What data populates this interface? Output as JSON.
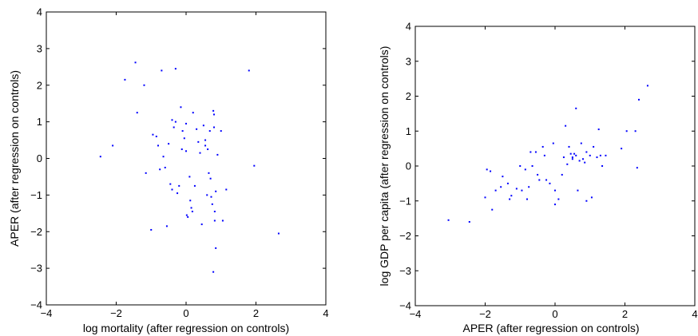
{
  "chart_data": [
    {
      "type": "scatter",
      "xlabel": "log mortality (after regression on controls)",
      "ylabel": "APER (after regression on controls)",
      "xlim": [
        -4,
        4
      ],
      "ylim": [
        -4,
        4
      ],
      "xticks": [
        "−4",
        "−2",
        "0",
        "2",
        "4"
      ],
      "yticks": [
        "4",
        "3",
        "2",
        "1",
        "0",
        "−1",
        "−2",
        "−3",
        "−4"
      ],
      "grid": false,
      "marker_color": "#0000ff",
      "points": [
        [
          -2.45,
          0.05
        ],
        [
          -2.1,
          0.35
        ],
        [
          -1.75,
          2.15
        ],
        [
          -1.45,
          2.62
        ],
        [
          -1.4,
          1.25
        ],
        [
          -1.2,
          2.0
        ],
        [
          -1.15,
          -0.4
        ],
        [
          -1.0,
          -1.95
        ],
        [
          -0.95,
          0.65
        ],
        [
          -0.85,
          0.6
        ],
        [
          -0.8,
          0.35
        ],
        [
          -0.75,
          -0.3
        ],
        [
          -0.7,
          2.4
        ],
        [
          -0.65,
          0.05
        ],
        [
          -0.6,
          -0.25
        ],
        [
          -0.55,
          -1.85
        ],
        [
          -0.5,
          0.4
        ],
        [
          -0.45,
          -0.7
        ],
        [
          -0.4,
          1.05
        ],
        [
          -0.4,
          -0.85
        ],
        [
          -0.35,
          0.85
        ],
        [
          -0.3,
          2.45
        ],
        [
          -0.3,
          1.0
        ],
        [
          -0.25,
          -0.95
        ],
        [
          -0.2,
          -0.75
        ],
        [
          -0.15,
          1.4
        ],
        [
          -0.12,
          0.25
        ],
        [
          -0.1,
          0.75
        ],
        [
          -0.05,
          0.55
        ],
        [
          0.0,
          0.95
        ],
        [
          0.0,
          0.2
        ],
        [
          0.02,
          -1.55
        ],
        [
          0.05,
          -1.6
        ],
        [
          0.1,
          -0.5
        ],
        [
          0.12,
          -1.15
        ],
        [
          0.15,
          -1.35
        ],
        [
          0.18,
          -1.45
        ],
        [
          0.2,
          1.25
        ],
        [
          0.25,
          -0.75
        ],
        [
          0.3,
          0.8
        ],
        [
          0.35,
          0.45
        ],
        [
          0.4,
          0.15
        ],
        [
          0.45,
          -1.8
        ],
        [
          0.5,
          0.9
        ],
        [
          0.55,
          0.5
        ],
        [
          0.55,
          0.35
        ],
        [
          0.6,
          -1.0
        ],
        [
          0.62,
          0.25
        ],
        [
          0.65,
          -0.4
        ],
        [
          0.68,
          0.75
        ],
        [
          0.7,
          -0.55
        ],
        [
          0.72,
          -1.05
        ],
        [
          0.75,
          -1.25
        ],
        [
          0.78,
          1.3
        ],
        [
          0.8,
          1.2
        ],
        [
          0.8,
          0.85
        ],
        [
          0.82,
          -1.45
        ],
        [
          0.82,
          -1.7
        ],
        [
          0.85,
          -2.45
        ],
        [
          0.78,
          -3.1
        ],
        [
          0.85,
          -0.9
        ],
        [
          0.9,
          0.1
        ],
        [
          1.0,
          0.75
        ],
        [
          1.05,
          -1.7
        ],
        [
          1.15,
          -0.85
        ],
        [
          1.8,
          2.4
        ],
        [
          1.95,
          -0.2
        ],
        [
          2.65,
          -2.05
        ]
      ]
    },
    {
      "type": "scatter",
      "xlabel": "APER (after regression on controls)",
      "ylabel": "log GDP per capita (after regression on controls)",
      "xlim": [
        -4,
        4
      ],
      "ylim": [
        -4,
        4
      ],
      "xticks": [
        "−4",
        "−2",
        "0",
        "2",
        "4"
      ],
      "yticks": [
        "4",
        "3",
        "2",
        "1",
        "0",
        "−1",
        "−2",
        "−3",
        "−4"
      ],
      "grid": false,
      "marker_color": "#0000ff",
      "points": [
        [
          -3.05,
          -1.55
        ],
        [
          -2.45,
          -1.6
        ],
        [
          -2.0,
          -0.9
        ],
        [
          -1.95,
          -0.1
        ],
        [
          -1.85,
          -0.15
        ],
        [
          -1.8,
          -1.25
        ],
        [
          -1.7,
          -0.7
        ],
        [
          -1.55,
          -0.6
        ],
        [
          -1.5,
          -0.3
        ],
        [
          -1.35,
          -0.5
        ],
        [
          -1.3,
          -0.95
        ],
        [
          -1.25,
          -0.85
        ],
        [
          -1.1,
          -0.65
        ],
        [
          -1.0,
          0.0
        ],
        [
          -0.95,
          -0.7
        ],
        [
          -0.85,
          -0.1
        ],
        [
          -0.8,
          -0.95
        ],
        [
          -0.75,
          -0.6
        ],
        [
          -0.7,
          0.4
        ],
        [
          -0.65,
          0.0
        ],
        [
          -0.55,
          0.4
        ],
        [
          -0.5,
          -0.25
        ],
        [
          -0.45,
          -0.4
        ],
        [
          -0.35,
          0.55
        ],
        [
          -0.3,
          0.3
        ],
        [
          -0.25,
          -0.4
        ],
        [
          -0.15,
          -0.5
        ],
        [
          -0.05,
          0.65
        ],
        [
          0.0,
          -0.7
        ],
        [
          0.0,
          -1.1
        ],
        [
          0.1,
          -0.95
        ],
        [
          0.2,
          -0.25
        ],
        [
          0.25,
          0.25
        ],
        [
          0.3,
          1.15
        ],
        [
          0.35,
          0.05
        ],
        [
          0.4,
          0.55
        ],
        [
          0.45,
          0.35
        ],
        [
          0.5,
          0.25
        ],
        [
          0.5,
          0.2
        ],
        [
          0.55,
          0.35
        ],
        [
          0.6,
          0.3
        ],
        [
          0.6,
          1.65
        ],
        [
          0.65,
          -0.7
        ],
        [
          0.7,
          0.15
        ],
        [
          0.75,
          0.65
        ],
        [
          0.8,
          0.2
        ],
        [
          0.85,
          0.1
        ],
        [
          0.9,
          0.4
        ],
        [
          0.9,
          -1.0
        ],
        [
          1.0,
          0.3
        ],
        [
          1.05,
          -0.9
        ],
        [
          1.1,
          0.55
        ],
        [
          1.2,
          0.25
        ],
        [
          1.25,
          1.05
        ],
        [
          1.3,
          0.3
        ],
        [
          1.35,
          0.0
        ],
        [
          1.45,
          0.3
        ],
        [
          1.9,
          0.5
        ],
        [
          2.05,
          1.0
        ],
        [
          2.3,
          1.0
        ],
        [
          2.35,
          -0.05
        ],
        [
          2.4,
          1.9
        ],
        [
          2.65,
          2.3
        ]
      ]
    }
  ]
}
